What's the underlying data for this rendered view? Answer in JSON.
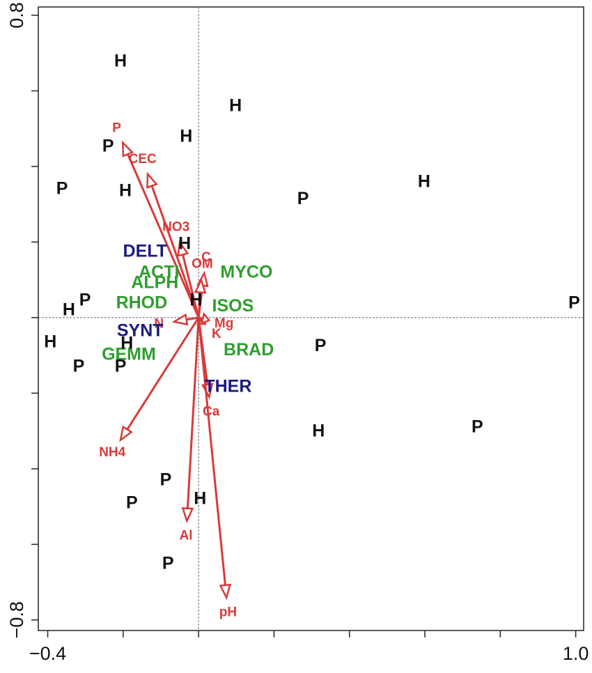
{
  "chart_data": {
    "type": "biplot",
    "xlim": [
      -0.425,
      1.021
    ],
    "ylim": [
      -0.828,
      0.822
    ],
    "xticks": [
      {
        "value": -0.4,
        "label": "−0.4"
      },
      {
        "value": 1.0,
        "label": "1.0"
      }
    ],
    "xminorticks": [
      -0.2,
      0,
      0.2,
      0.4,
      0.6,
      0.8
    ],
    "yticks": [
      {
        "value": -0.8,
        "label": "−0.8"
      },
      {
        "value": 0.8,
        "label": "0.8"
      }
    ],
    "yminorticks": [
      -0.6,
      -0.4,
      -0.2,
      0,
      0.2,
      0.4,
      0.6
    ],
    "sites": {
      "color": "#111111",
      "labels": [
        "H",
        "H",
        "H",
        "P",
        "P",
        "H",
        "P",
        "H",
        "H",
        "H",
        "P",
        "H",
        "P",
        "H",
        "H",
        "P",
        "P",
        "P",
        "H",
        "P",
        "P",
        "P",
        "H",
        "P"
      ],
      "x": [
        -0.207,
        0.098,
        -0.033,
        -0.24,
        -0.362,
        -0.194,
        0.277,
        0.598,
        -0.037,
        -0.007,
        -0.301,
        -0.344,
        0.996,
        -0.393,
        -0.19,
        0.323,
        -0.318,
        -0.207,
        0.318,
        0.739,
        -0.087,
        -0.177,
        0.004,
        -0.081
      ],
      "y": [
        0.677,
        0.559,
        0.477,
        0.452,
        0.339,
        0.334,
        0.312,
        0.358,
        0.194,
        0.044,
        0.044,
        0.018,
        0.037,
        -0.066,
        -0.07,
        -0.077,
        -0.131,
        -0.131,
        -0.302,
        -0.291,
        -0.431,
        -0.492,
        -0.481,
        -0.653
      ]
    },
    "vectors": {
      "color": "#d83a3a",
      "names": [
        "P",
        "CEC",
        "NO3",
        "C",
        "OM",
        "N",
        "K",
        "Mg",
        "Ca",
        "NH4",
        "Al",
        "pH"
      ],
      "x": [
        -0.201,
        -0.135,
        -0.05,
        0.015,
        0.007,
        -0.065,
        0.018,
        0.028,
        0.028,
        -0.207,
        -0.031,
        0.074
      ],
      "y": [
        0.463,
        0.38,
        0.199,
        0.118,
        0.1,
        -0.011,
        -0.017,
        -0.007,
        -0.21,
        -0.324,
        -0.538,
        -0.741
      ]
    },
    "species": {
      "labels": [
        "DELT",
        "ACTI",
        "ALPH",
        "RHOD",
        "MYCO",
        "ISOS",
        "SYNT",
        "GEMM",
        "BRAD",
        "THER"
      ],
      "colors": [
        "#1a1a80",
        "#2e9e2e",
        "#2e9e2e",
        "#2e9e2e",
        "#2e9e2e",
        "#2e9e2e",
        "#1a1a80",
        "#2e9e2e",
        "#2e9e2e",
        "#1a1a80"
      ],
      "x": [
        -0.142,
        -0.105,
        -0.116,
        -0.151,
        0.127,
        0.091,
        -0.155,
        -0.185,
        0.133,
        0.078
      ],
      "y": [
        0.173,
        0.118,
        0.09,
        0.037,
        0.118,
        0.029,
        -0.037,
        -0.1,
        -0.088,
        -0.184
      ]
    }
  }
}
